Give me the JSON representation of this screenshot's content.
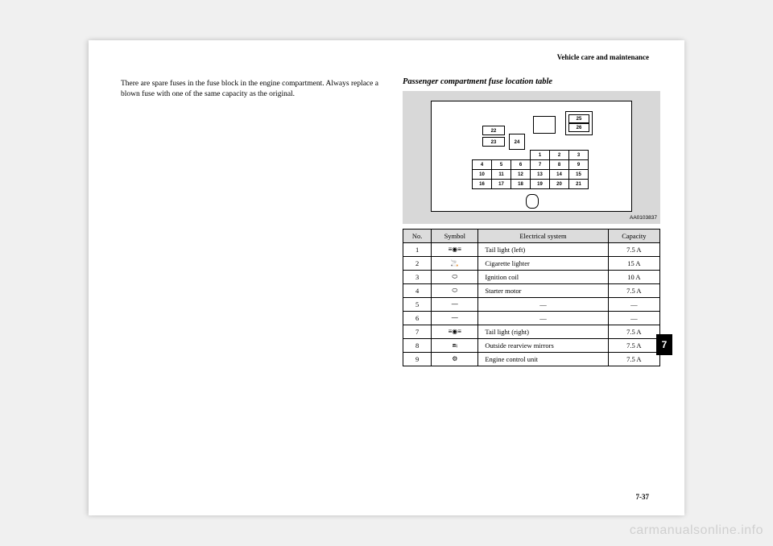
{
  "header": {
    "section": "Vehicle care and maintenance"
  },
  "leftText": "There are spare fuses in the fuse block in the engine compartment. Always replace a blown fuse with one of the same capacity as the original.",
  "subheading": "Passenger compartment fuse location table",
  "diagram": {
    "ref": "AA0103837",
    "boxes": {
      "b22": "22",
      "b23": "23",
      "b24": "24",
      "b25": "25",
      "b26": "26"
    },
    "grid": [
      [
        "",
        "",
        "",
        "1",
        "2",
        "3"
      ],
      [
        "4",
        "5",
        "6",
        "7",
        "8",
        "9"
      ],
      [
        "10",
        "11",
        "12",
        "13",
        "14",
        "15"
      ],
      [
        "16",
        "17",
        "18",
        "19",
        "20",
        "21"
      ]
    ]
  },
  "table": {
    "headers": {
      "no": "No.",
      "symbol": "Symbol",
      "system": "Electrical system",
      "capacity": "Capacity"
    },
    "rows": [
      {
        "no": "1",
        "icon": "tail-left",
        "system": "Tail light (left)",
        "capacity": "7.5 A"
      },
      {
        "no": "2",
        "icon": "lighter",
        "system": "Cigarette lighter",
        "capacity": "15 A"
      },
      {
        "no": "3",
        "icon": "coil",
        "system": "Ignition coil",
        "capacity": "10 A"
      },
      {
        "no": "4",
        "icon": "starter",
        "system": "Starter motor",
        "capacity": "7.5 A"
      },
      {
        "no": "5",
        "icon": "dash",
        "system": "—",
        "capacity": "—"
      },
      {
        "no": "6",
        "icon": "dash",
        "system": "—",
        "capacity": "—"
      },
      {
        "no": "7",
        "icon": "tail-right",
        "system": "Tail light (right)",
        "capacity": "7.5 A"
      },
      {
        "no": "8",
        "icon": "mirror",
        "system": "Outside rearview mirrors",
        "capacity": "7.5 A"
      },
      {
        "no": "9",
        "icon": "ecu",
        "system": "Engine control unit",
        "capacity": "7.5 A"
      }
    ]
  },
  "sideTab": "7",
  "pageNumber": "7-37",
  "watermark": "carmanualsonline.info",
  "icons": {
    "tail-left": "≡◉≡",
    "lighter": "🚬",
    "coil": "⬭",
    "starter": "⬭",
    "dash": "—",
    "tail-right": "≡◉≡",
    "mirror": "⧈ᵢ",
    "ecu": "⚙"
  }
}
